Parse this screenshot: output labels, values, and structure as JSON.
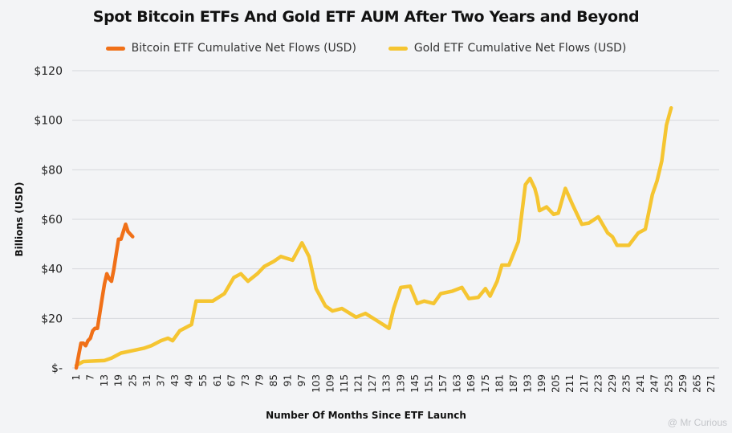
{
  "chart_data": {
    "type": "line",
    "title": "Spot Bitcoin ETFs And Gold ETF AUM After Two Years and Beyond",
    "xlabel": "Number Of Months Since ETF Launch",
    "ylabel": "Billions (USD)",
    "xlim": [
      1,
      271
    ],
    "ylim": [
      0,
      120
    ],
    "x_ticks": [
      1,
      7,
      13,
      19,
      25,
      31,
      37,
      43,
      49,
      55,
      61,
      67,
      73,
      79,
      85,
      91,
      97,
      103,
      109,
      115,
      121,
      127,
      133,
      139,
      145,
      151,
      157,
      163,
      169,
      175,
      181,
      187,
      193,
      199,
      205,
      211,
      217,
      223,
      229,
      235,
      241,
      247,
      253,
      259,
      265,
      271
    ],
    "y_ticks": [
      0,
      20,
      40,
      60,
      80,
      100,
      120
    ],
    "y_tick_labels": [
      "$-",
      "$20",
      "$40",
      "$60",
      "$80",
      "$100",
      "$120"
    ],
    "grid": "horizontal",
    "legend_position": "top",
    "series": [
      {
        "name": "Bitcoin ETF Cumulative Net Flows (USD)",
        "color": "#f07018",
        "x": [
          1,
          2,
          3,
          4,
          5,
          6,
          7,
          8,
          9,
          10,
          11,
          12,
          13,
          14,
          15,
          16,
          17,
          18,
          19,
          20,
          21,
          22,
          23,
          24,
          25
        ],
        "y": [
          0,
          5,
          10,
          10,
          9,
          11,
          12,
          15,
          16,
          16,
          22,
          28,
          34,
          38,
          36,
          35,
          40,
          46,
          52,
          52,
          55,
          58,
          55,
          54,
          53
        ]
      },
      {
        "name": "Gold ETF Cumulative Net Flows (USD)",
        "color": "#f5c531",
        "x": [
          1,
          4,
          13,
          16,
          20,
          25,
          30,
          33,
          37,
          40,
          42,
          45,
          50,
          52,
          59,
          64,
          68,
          71,
          74,
          78,
          81,
          85,
          88,
          93,
          97,
          100,
          103,
          107,
          110,
          114,
          120,
          124,
          129,
          134,
          136,
          139,
          143,
          146,
          149,
          153,
          156,
          161,
          165,
          168,
          172,
          175,
          177,
          180,
          182,
          185,
          189,
          192,
          194,
          196,
          197,
          198,
          201,
          204,
          206,
          209,
          212,
          216,
          219,
          223,
          227,
          229,
          231,
          236,
          240,
          243,
          246,
          248,
          250,
          252,
          254
        ],
        "y": [
          1,
          2.6,
          3,
          4,
          6,
          7,
          8,
          9,
          11,
          12,
          11,
          15,
          17.5,
          27,
          27,
          30,
          36.5,
          38,
          35,
          38,
          41,
          43,
          45,
          43.5,
          50.5,
          45,
          32,
          25,
          23,
          24,
          20.5,
          22,
          19,
          16,
          24,
          32.5,
          33,
          26,
          27,
          26,
          30,
          31,
          32.5,
          28,
          28.5,
          32,
          29,
          35,
          41.5,
          41.5,
          51,
          74,
          76.5,
          72.5,
          69,
          63.5,
          65,
          62,
          62.5,
          72.5,
          66,
          58,
          58.5,
          61,
          54.5,
          53,
          49.5,
          49.5,
          54.5,
          56,
          70,
          75.5,
          83.5,
          98,
          105
        ]
      }
    ]
  },
  "watermark": "@ Mr Curious"
}
